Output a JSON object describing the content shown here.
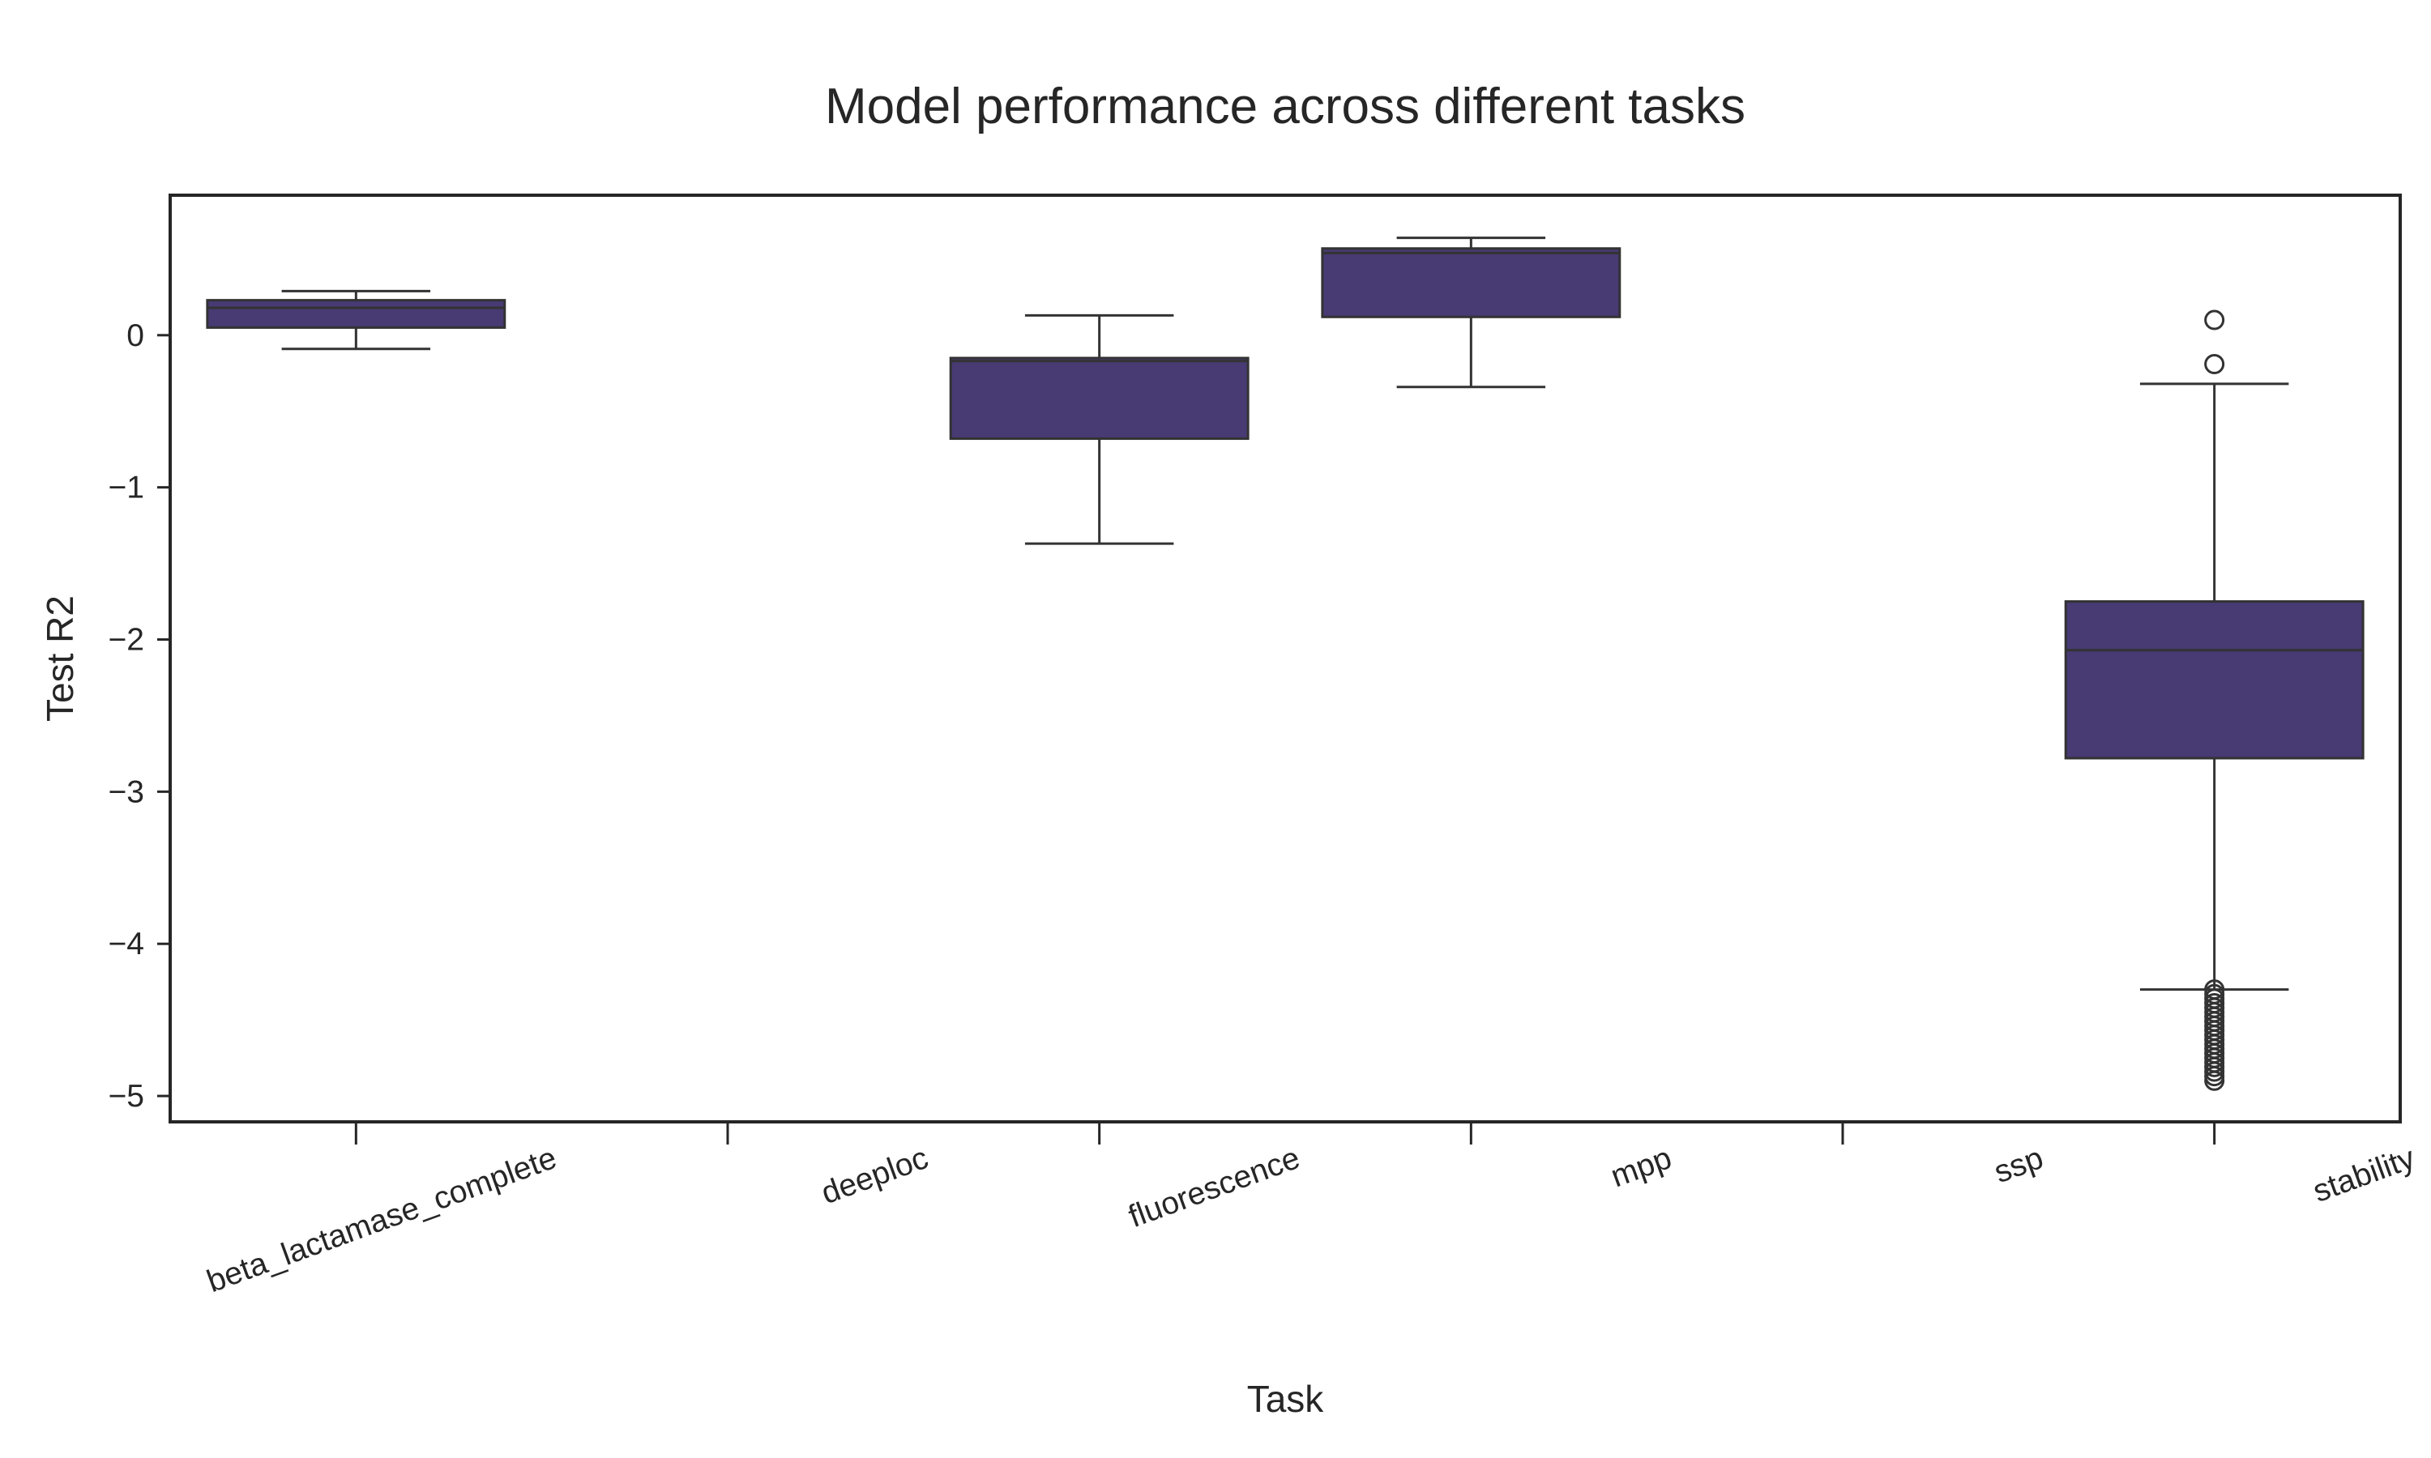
{
  "chart_data": {
    "type": "box",
    "title": "Model performance across different tasks",
    "xlabel": "Task",
    "ylabel": "Test R2",
    "ylim": [
      -5.17,
      0.92
    ],
    "yticks": [
      0,
      -1,
      -2,
      -3,
      -4,
      -5
    ],
    "ytick_labels": [
      "0",
      "−1",
      "−2",
      "−3",
      "−4",
      "−5"
    ],
    "categories": [
      "beta_lactamase_complete",
      "deeploc",
      "fluorescence",
      "mpp",
      "ssp",
      "stability"
    ],
    "grid": false,
    "legend": "none",
    "box_color": "#483a73",
    "edge_color": "#333333",
    "boxes": [
      {
        "category": "beta_lactamase_complete",
        "whisker_low": -0.09,
        "q1": 0.05,
        "median": 0.18,
        "q3": 0.23,
        "whisker_high": 0.29,
        "outliers": []
      },
      {
        "category": "deeploc",
        "empty": true
      },
      {
        "category": "fluorescence",
        "whisker_low": -1.37,
        "q1": -0.68,
        "median": -0.17,
        "q3": -0.15,
        "whisker_high": 0.13,
        "outliers": []
      },
      {
        "category": "mpp",
        "whisker_low": -0.34,
        "q1": 0.12,
        "median": 0.54,
        "q3": 0.57,
        "whisker_high": 0.64,
        "outliers": []
      },
      {
        "category": "ssp",
        "empty": true
      },
      {
        "category": "stability",
        "whisker_low": -4.3,
        "q1": -2.78,
        "median": -2.07,
        "q3": -1.75,
        "whisker_high": -0.32,
        "outliers": [
          0.1,
          -0.19,
          -4.3,
          -4.33,
          -4.36,
          -4.39,
          -4.42,
          -4.45,
          -4.48,
          -4.51,
          -4.54,
          -4.57,
          -4.6,
          -4.63,
          -4.66,
          -4.69,
          -4.72,
          -4.75,
          -4.78,
          -4.81,
          -4.84,
          -4.87,
          -4.9
        ]
      }
    ]
  }
}
